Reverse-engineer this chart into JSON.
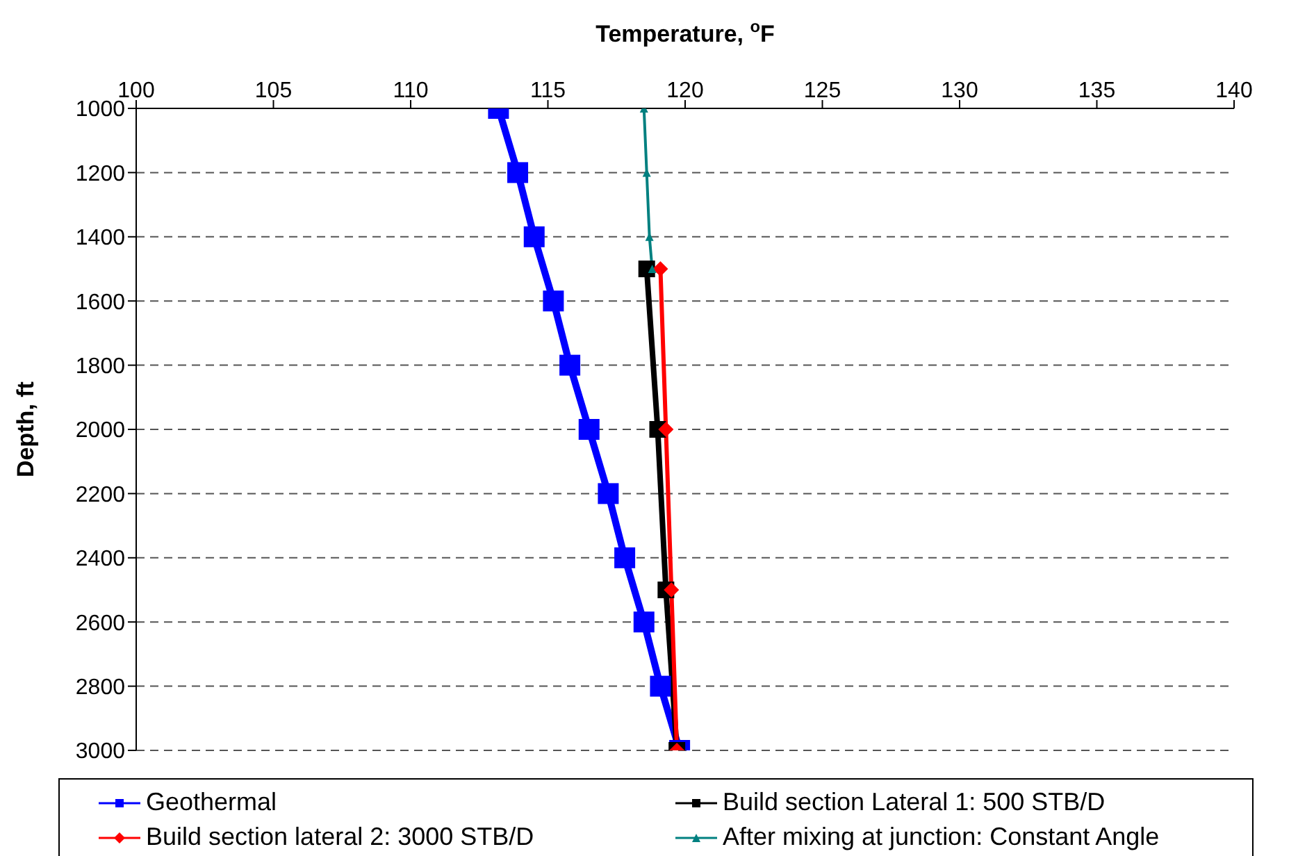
{
  "chart_data": {
    "type": "line",
    "xlabel": "Temperature,  $^{o}$F",
    "ylabel": "Depth, ft",
    "xlim": [
      100,
      140
    ],
    "xticks": [
      100,
      105,
      110,
      115,
      120,
      125,
      130,
      135,
      140
    ],
    "ylim": [
      3000,
      1000
    ],
    "yticks": [
      1000,
      1200,
      1400,
      1600,
      1800,
      2000,
      2200,
      2400,
      2600,
      2800,
      3000
    ],
    "grid": "y",
    "legend": "bottom",
    "line_style": "solid",
    "series": [
      {
        "name": "Geothermal",
        "color": "#0000ff",
        "marker": "square",
        "x": [
          113.2,
          113.9,
          114.5,
          115.2,
          115.8,
          116.5,
          117.2,
          117.8,
          118.5,
          119.1,
          119.8
        ],
        "values": [
          1000,
          1200,
          1400,
          1600,
          1800,
          2000,
          2200,
          2400,
          2600,
          2800,
          3000
        ]
      },
      {
        "name": "Build section Lateral 1: 500 STB/D",
        "color": "#000000",
        "marker": "square",
        "x": [
          118.6,
          119.0,
          119.3,
          119.7
        ],
        "values": [
          1500,
          2000,
          2500,
          3000
        ]
      },
      {
        "name": "Build section lateral 2: 3000 STB/D",
        "color": "#ff0000",
        "marker": "diamond",
        "x": [
          119.1,
          119.3,
          119.5,
          119.7
        ],
        "values": [
          1500,
          2000,
          2500,
          3000
        ]
      },
      {
        "name": "After mixing at junction: Constant Angle",
        "color": "#008080",
        "marker": "triangle",
        "x": [
          118.5,
          118.6,
          118.7,
          118.8
        ],
        "values": [
          1000,
          1200,
          1400,
          1500
        ]
      }
    ]
  }
}
